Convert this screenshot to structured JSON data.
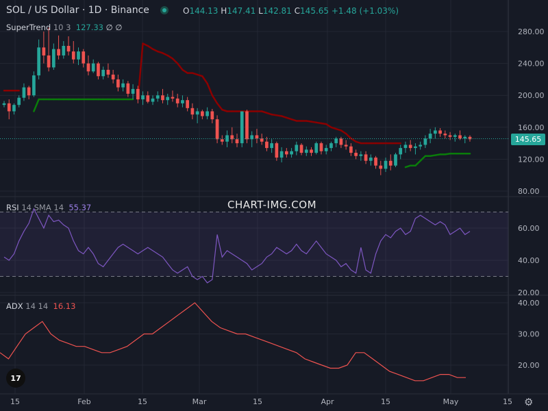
{
  "header": {
    "symbol": "SOL / US Dollar · 1D · Binance",
    "open_label": "O",
    "open": "144.13",
    "high_label": "H",
    "high": "147.41",
    "low_label": "L",
    "low": "142.81",
    "close_label": "C",
    "close": "145.65",
    "change": "+1.48 (+1.03%)"
  },
  "supertrend": {
    "name": "SuperTrend",
    "params": "10 3",
    "value": "127.33",
    "icons": "∅ ∅"
  },
  "rsi": {
    "name": "RSI",
    "params": "14 SMA 14",
    "value": "55.37"
  },
  "adx": {
    "name": "ADX",
    "params": "14 14",
    "value": "16.13"
  },
  "watermark": "CHART-IMG.COM",
  "logo": "17",
  "current_price_tag": "145.65",
  "colors": {
    "up": "#26a69a",
    "down": "#ef5350",
    "st_down": "#8b0000",
    "st_up": "#0a7d0a",
    "rsi": "#7e57c2",
    "adx": "#f05350"
  },
  "chart_data": {
    "type": "candlestick",
    "price_axis": {
      "ticks": [
        280,
        240,
        200,
        160,
        120,
        80
      ],
      "tick_labels": [
        "280.00",
        "240.00",
        "200.00",
        "160.00",
        "120.00",
        "80.00"
      ]
    },
    "rsi_axis": {
      "ticks": [
        60,
        40,
        20
      ],
      "tick_labels": [
        "60.00",
        "40.00",
        "20.00"
      ],
      "bands": [
        70,
        30
      ]
    },
    "adx_axis": {
      "ticks": [
        40,
        30,
        20
      ],
      "tick_labels": [
        "40.00",
        "30.00",
        "20.00"
      ]
    },
    "x_ticks": [
      "15",
      "Feb",
      "15",
      "Mar",
      "15",
      "Apr",
      "15",
      "May",
      "15"
    ],
    "candles": [
      [
        188,
        193,
        185,
        190
      ],
      [
        190,
        195,
        170,
        180
      ],
      [
        180,
        190,
        176,
        188
      ],
      [
        188,
        200,
        185,
        197
      ],
      [
        197,
        215,
        193,
        210
      ],
      [
        210,
        212,
        195,
        200
      ],
      [
        200,
        230,
        198,
        225
      ],
      [
        225,
        270,
        220,
        260
      ],
      [
        260,
        280,
        240,
        250
      ],
      [
        250,
        285,
        230,
        235
      ],
      [
        235,
        265,
        232,
        258
      ],
      [
        258,
        275,
        245,
        250
      ],
      [
        250,
        268,
        246,
        262
      ],
      [
        262,
        274,
        250,
        255
      ],
      [
        255,
        268,
        240,
        245
      ],
      [
        245,
        260,
        238,
        255
      ],
      [
        255,
        258,
        235,
        240
      ],
      [
        240,
        250,
        225,
        230
      ],
      [
        230,
        245,
        228,
        240
      ],
      [
        240,
        242,
        220,
        224
      ],
      [
        224,
        236,
        220,
        232
      ],
      [
        232,
        240,
        222,
        226
      ],
      [
        226,
        232,
        215,
        220
      ],
      [
        220,
        226,
        205,
        210
      ],
      [
        210,
        220,
        205,
        215
      ],
      [
        215,
        218,
        198,
        202
      ],
      [
        202,
        214,
        195,
        208
      ],
      [
        208,
        212,
        190,
        195
      ],
      [
        195,
        205,
        188,
        200
      ],
      [
        200,
        205,
        190,
        192
      ],
      [
        192,
        200,
        188,
        196
      ],
      [
        196,
        205,
        192,
        200
      ],
      [
        200,
        208,
        190,
        194
      ],
      [
        194,
        202,
        188,
        198
      ],
      [
        198,
        206,
        192,
        196
      ],
      [
        196,
        202,
        185,
        190
      ],
      [
        190,
        200,
        185,
        194
      ],
      [
        194,
        198,
        180,
        184
      ],
      [
        184,
        190,
        170,
        176
      ],
      [
        176,
        184,
        165,
        180
      ],
      [
        180,
        182,
        170,
        174
      ],
      [
        174,
        185,
        170,
        180
      ],
      [
        180,
        183,
        165,
        170
      ],
      [
        170,
        175,
        140,
        145
      ],
      [
        145,
        150,
        138,
        142
      ],
      [
        142,
        156,
        135,
        150
      ],
      [
        150,
        160,
        140,
        145
      ],
      [
        145,
        152,
        135,
        140
      ],
      [
        140,
        180,
        135,
        180
      ],
      [
        180,
        182,
        140,
        145
      ],
      [
        145,
        155,
        135,
        150
      ],
      [
        150,
        158,
        140,
        146
      ],
      [
        146,
        152,
        138,
        142
      ],
      [
        142,
        148,
        130,
        134
      ],
      [
        134,
        145,
        128,
        140
      ],
      [
        140,
        142,
        118,
        122
      ],
      [
        122,
        135,
        116,
        130
      ],
      [
        130,
        134,
        122,
        126
      ],
      [
        126,
        134,
        122,
        130
      ],
      [
        130,
        142,
        125,
        138
      ],
      [
        138,
        140,
        125,
        128
      ],
      [
        128,
        136,
        124,
        132
      ],
      [
        132,
        135,
        124,
        128
      ],
      [
        128,
        142,
        126,
        140
      ],
      [
        140,
        142,
        126,
        130
      ],
      [
        130,
        138,
        126,
        134
      ],
      [
        134,
        142,
        130,
        140
      ],
      [
        140,
        148,
        135,
        146
      ],
      [
        146,
        148,
        134,
        138
      ],
      [
        138,
        144,
        132,
        136
      ],
      [
        136,
        140,
        124,
        128
      ],
      [
        128,
        132,
        120,
        124
      ],
      [
        124,
        130,
        118,
        126
      ],
      [
        126,
        130,
        114,
        118
      ],
      [
        118,
        126,
        112,
        122
      ],
      [
        122,
        124,
        108,
        112
      ],
      [
        112,
        118,
        100,
        108
      ],
      [
        108,
        122,
        104,
        118
      ],
      [
        118,
        126,
        106,
        112
      ],
      [
        112,
        128,
        110,
        126
      ],
      [
        126,
        138,
        120,
        134
      ],
      [
        134,
        142,
        128,
        138
      ],
      [
        138,
        144,
        130,
        134
      ],
      [
        134,
        140,
        126,
        136
      ],
      [
        136,
        142,
        132,
        138
      ],
      [
        138,
        150,
        134,
        146
      ],
      [
        146,
        158,
        140,
        152
      ],
      [
        152,
        160,
        146,
        156
      ],
      [
        156,
        159,
        148,
        152
      ],
      [
        152,
        156,
        146,
        150
      ],
      [
        150,
        154,
        144,
        148
      ],
      [
        148,
        152,
        142,
        150
      ],
      [
        150,
        156,
        144,
        146
      ],
      [
        146,
        150,
        140,
        148
      ],
      [
        148,
        150,
        142,
        145
      ]
    ],
    "supertrend": [
      206,
      206,
      206,
      206,
      206,
      206,
      180,
      195,
      195,
      195,
      195,
      195,
      195,
      195,
      195,
      195,
      195,
      195,
      195,
      195,
      195,
      195,
      195,
      195,
      195,
      195,
      195,
      195,
      265,
      262,
      258,
      255,
      253,
      250,
      246,
      240,
      232,
      228,
      228,
      226,
      224,
      215,
      200,
      190,
      182,
      180,
      180,
      180,
      180,
      180,
      180,
      180,
      180,
      178,
      176,
      175,
      174,
      172,
      170,
      168,
      168,
      168,
      167,
      166,
      165,
      164,
      160,
      158,
      156,
      152,
      146,
      142,
      140,
      140,
      140,
      140,
      140,
      140,
      140,
      140,
      140,
      110,
      112,
      112,
      118,
      124,
      124,
      125,
      126,
      126,
      127,
      127,
      127,
      127,
      127
    ],
    "rsi": [
      42,
      40,
      44,
      52,
      58,
      63,
      72,
      66,
      60,
      68,
      64,
      65,
      62,
      60,
      52,
      46,
      44,
      48,
      44,
      38,
      36,
      40,
      44,
      48,
      50,
      48,
      46,
      44,
      46,
      48,
      46,
      44,
      42,
      38,
      34,
      32,
      34,
      36,
      30,
      28,
      30,
      26,
      28,
      56,
      42,
      46,
      44,
      42,
      40,
      38,
      34,
      36,
      38,
      42,
      44,
      48,
      46,
      44,
      46,
      50,
      46,
      44,
      48,
      52,
      48,
      44,
      42,
      40,
      36,
      38,
      34,
      32,
      48,
      34,
      32,
      44,
      52,
      56,
      54,
      58,
      60,
      56,
      58,
      66,
      68,
      66,
      64,
      62,
      64,
      62,
      56,
      58,
      60,
      56,
      58
    ],
    "adx": [
      24,
      22,
      26,
      30,
      32,
      34,
      30,
      28,
      27,
      26,
      26,
      25,
      24,
      24,
      25,
      26,
      28,
      30,
      30,
      32,
      34,
      36,
      38,
      40,
      37,
      34,
      32,
      31,
      30,
      30,
      29,
      28,
      27,
      26,
      25,
      24,
      22,
      21,
      20,
      19,
      19,
      20,
      24,
      24,
      22,
      20,
      18,
      17,
      16,
      15,
      15,
      16,
      17,
      17,
      16,
      16
    ]
  }
}
